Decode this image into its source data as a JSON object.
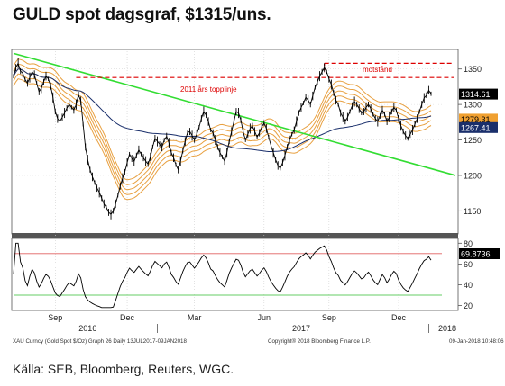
{
  "title": "GULD spot dagsgraf, $1315/uns.",
  "source": "Källa: SEB, Bloomberg, Reuters, WGC.",
  "footer": {
    "left": "XAU Curncy (Gold Spot  $/Oz) Graph 26  Daily 13JUL2017-09JAN2018",
    "center": "Copyright® 2018 Bloomberg Finance L.P.",
    "right": "09-Jan-2018 10:48:06"
  },
  "colors": {
    "price": "#000000",
    "trendline": "#33dd33",
    "resistance": "#dd0000",
    "ma_band": "#e8a040",
    "ma_long": "#1a2f6b",
    "rsi": "#000000",
    "rsi_upper": "#e06060",
    "rsi_lower": "#66cc66",
    "tag_price": "#000000",
    "tag_orange": "#f0a030",
    "tag_navy": "#1a2f6b",
    "tag_rsi": "#000000"
  },
  "chart_data": [
    {
      "type": "line",
      "panel": "price",
      "ylim": [
        1120,
        1375
      ],
      "y_ticks": [
        1150,
        1200,
        1250,
        1300,
        1350
      ],
      "x_month_labels": [
        "Sep",
        "Dec",
        "Mar",
        "Jun",
        "Sep",
        "Dec"
      ],
      "x_year_labels": [
        "2016",
        "2017",
        "2018"
      ],
      "annotations": [
        "2011 års topplinje",
        "motstånd"
      ],
      "last_value_tags": [
        "1314.61",
        "1279.31",
        "1267.41"
      ],
      "series": [
        {
          "values": [
            1340,
            1352,
            1358,
            1347,
            1344,
            1335,
            1330,
            1338,
            1346,
            1342,
            1330,
            1318,
            1323,
            1332,
            1340,
            1336,
            1326,
            1310,
            1290,
            1280,
            1276,
            1282,
            1288,
            1295,
            1300,
            1296,
            1292,
            1300,
            1314,
            1305,
            1272,
            1240,
            1222,
            1208,
            1198,
            1190,
            1182,
            1176,
            1168,
            1160,
            1155,
            1148,
            1145,
            1150,
            1160,
            1172,
            1185,
            1196,
            1205,
            1218,
            1230,
            1224,
            1220,
            1228,
            1236,
            1230,
            1225,
            1220,
            1216,
            1226,
            1240,
            1252,
            1248,
            1244,
            1240,
            1250,
            1255,
            1246,
            1232,
            1225,
            1215,
            1208,
            1220,
            1235,
            1248,
            1260,
            1262,
            1256,
            1250,
            1258,
            1268,
            1280,
            1290,
            1285,
            1276,
            1264,
            1260,
            1250,
            1240,
            1232,
            1226,
            1220,
            1232,
            1248,
            1262,
            1276,
            1290,
            1288,
            1278,
            1262,
            1250,
            1258,
            1266,
            1270,
            1262,
            1254,
            1260,
            1268,
            1274,
            1266,
            1254,
            1242,
            1232,
            1222,
            1214,
            1210,
            1218,
            1228,
            1240,
            1250,
            1258,
            1264,
            1276,
            1288,
            1296,
            1302,
            1310,
            1306,
            1300,
            1312,
            1324,
            1332,
            1340,
            1346,
            1352,
            1346,
            1336,
            1328,
            1316,
            1306,
            1300,
            1288,
            1282,
            1276,
            1282,
            1290,
            1298,
            1304,
            1300,
            1294,
            1288,
            1290,
            1296,
            1300,
            1294,
            1286,
            1280,
            1276,
            1284,
            1292,
            1286,
            1276,
            1282,
            1290,
            1296,
            1292,
            1280,
            1270,
            1262,
            1256,
            1252,
            1258,
            1264,
            1272,
            1280,
            1290,
            1300,
            1309,
            1313,
            1320,
            1315
          ]
        }
      ]
    },
    {
      "type": "line",
      "panel": "rsi",
      "ylim": [
        17,
        82
      ],
      "y_ticks": [
        20,
        40,
        60,
        80
      ],
      "reference_lines": [
        70,
        30
      ],
      "last_value_tag": "69.8736"
    }
  ]
}
